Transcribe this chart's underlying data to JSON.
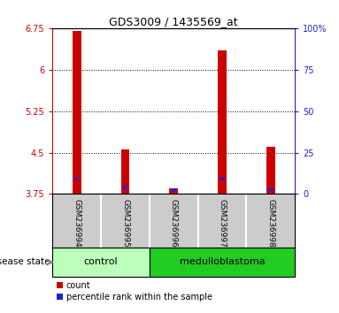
{
  "title": "GDS3009 / 1435569_at",
  "samples": [
    "GSM236994",
    "GSM236995",
    "GSM236996",
    "GSM236997",
    "GSM236998"
  ],
  "bar_bottom": 3.75,
  "bar_tops": [
    6.7,
    4.55,
    3.85,
    6.35,
    4.6
  ],
  "blue_values": [
    4.02,
    3.87,
    3.82,
    4.02,
    3.83
  ],
  "ylim": [
    3.75,
    6.75
  ],
  "yticks": [
    3.75,
    4.5,
    5.25,
    6.0,
    6.75
  ],
  "ytick_labels": [
    "3.75",
    "4.5",
    "5.25",
    "6",
    "6.75"
  ],
  "right_ytick_pcts": [
    0,
    25,
    50,
    75,
    100
  ],
  "right_ytick_labels": [
    "0",
    "25",
    "50",
    "75",
    "100%"
  ],
  "grid_lines": [
    6.0,
    5.25,
    4.5
  ],
  "bar_color": "#cc0000",
  "blue_color": "#2222cc",
  "bar_width": 0.18,
  "control_color": "#bbffbb",
  "medulloblastoma_color": "#22cc22",
  "left_axis_color": "#cc0000",
  "right_axis_color": "#2222cc",
  "bg_color": "#ffffff",
  "tick_label_bg": "#cccccc",
  "legend_count_color": "#cc0000",
  "legend_percentile_color": "#2222cc",
  "control_samples": 2,
  "total_samples": 5
}
